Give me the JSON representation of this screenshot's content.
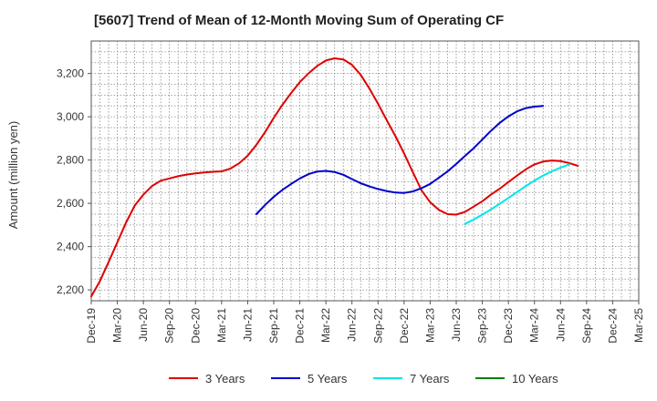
{
  "chart_data": {
    "type": "line",
    "title": "[5607]  Trend of Mean of 12-Month Moving Sum of Operating CF",
    "xlabel": "",
    "ylabel": "Amount (million yen)",
    "ylim": [
      2150,
      3350
    ],
    "yticks": [
      2200,
      2400,
      2600,
      2800,
      3000,
      3200
    ],
    "ytick_labels": [
      "2,200",
      "2,400",
      "2,600",
      "2,800",
      "3,000",
      "3,200"
    ],
    "x_categories": [
      "Dec-19",
      "Mar-20",
      "Jun-20",
      "Sep-20",
      "Dec-20",
      "Mar-21",
      "Jun-21",
      "Sep-21",
      "Dec-21",
      "Mar-22",
      "Jun-22",
      "Sep-22",
      "Dec-22",
      "Mar-23",
      "Jun-23",
      "Sep-23",
      "Dec-23",
      "Mar-24",
      "Jun-24",
      "Sep-24",
      "Dec-24",
      "Mar-25"
    ],
    "grid": true,
    "legend_position": "bottom",
    "series": [
      {
        "name": "3 Years",
        "color": "#e00000",
        "points": [
          [
            0,
            2170
          ],
          [
            0.33,
            2240
          ],
          [
            0.67,
            2330
          ],
          [
            1,
            2420
          ],
          [
            1.33,
            2510
          ],
          [
            1.67,
            2590
          ],
          [
            2,
            2640
          ],
          [
            2.33,
            2680
          ],
          [
            2.67,
            2705
          ],
          [
            3,
            2715
          ],
          [
            3.33,
            2725
          ],
          [
            3.67,
            2733
          ],
          [
            4,
            2738
          ],
          [
            4.33,
            2743
          ],
          [
            4.67,
            2746
          ],
          [
            5,
            2748
          ],
          [
            5.33,
            2760
          ],
          [
            5.67,
            2785
          ],
          [
            6,
            2820
          ],
          [
            6.33,
            2870
          ],
          [
            6.67,
            2930
          ],
          [
            7,
            2995
          ],
          [
            7.33,
            3055
          ],
          [
            7.67,
            3110
          ],
          [
            8,
            3160
          ],
          [
            8.33,
            3200
          ],
          [
            8.67,
            3235
          ],
          [
            9,
            3260
          ],
          [
            9.33,
            3270
          ],
          [
            9.67,
            3265
          ],
          [
            10,
            3240
          ],
          [
            10.33,
            3195
          ],
          [
            10.67,
            3130
          ],
          [
            11,
            3060
          ],
          [
            11.33,
            2985
          ],
          [
            11.67,
            2910
          ],
          [
            12,
            2830
          ],
          [
            12.33,
            2745
          ],
          [
            12.67,
            2660
          ],
          [
            13,
            2605
          ],
          [
            13.33,
            2570
          ],
          [
            13.67,
            2550
          ],
          [
            14,
            2548
          ],
          [
            14.33,
            2560
          ],
          [
            14.67,
            2585
          ],
          [
            15,
            2610
          ],
          [
            15.33,
            2640
          ],
          [
            15.67,
            2668
          ],
          [
            16,
            2698
          ],
          [
            16.33,
            2728
          ],
          [
            16.67,
            2757
          ],
          [
            17,
            2780
          ],
          [
            17.33,
            2793
          ],
          [
            17.67,
            2798
          ],
          [
            18,
            2795
          ],
          [
            18.33,
            2786
          ],
          [
            18.67,
            2773
          ]
        ]
      },
      {
        "name": "5 Years",
        "color": "#0000cc",
        "points": [
          [
            6.33,
            2550
          ],
          [
            6.67,
            2593
          ],
          [
            7,
            2630
          ],
          [
            7.33,
            2662
          ],
          [
            7.67,
            2690
          ],
          [
            8,
            2715
          ],
          [
            8.33,
            2735
          ],
          [
            8.67,
            2747
          ],
          [
            9,
            2750
          ],
          [
            9.33,
            2745
          ],
          [
            9.67,
            2732
          ],
          [
            10,
            2712
          ],
          [
            10.33,
            2693
          ],
          [
            10.67,
            2678
          ],
          [
            11,
            2666
          ],
          [
            11.33,
            2657
          ],
          [
            11.67,
            2650
          ],
          [
            12,
            2648
          ],
          [
            12.33,
            2655
          ],
          [
            12.67,
            2670
          ],
          [
            13,
            2690
          ],
          [
            13.33,
            2718
          ],
          [
            13.67,
            2748
          ],
          [
            14,
            2782
          ],
          [
            14.33,
            2818
          ],
          [
            14.67,
            2855
          ],
          [
            15,
            2895
          ],
          [
            15.33,
            2935
          ],
          [
            15.67,
            2972
          ],
          [
            16,
            3002
          ],
          [
            16.33,
            3025
          ],
          [
            16.67,
            3040
          ],
          [
            17,
            3047
          ],
          [
            17.33,
            3050
          ]
        ]
      },
      {
        "name": "7 Years",
        "color": "#00e5e5",
        "points": [
          [
            14.33,
            2505
          ],
          [
            14.67,
            2525
          ],
          [
            15,
            2548
          ],
          [
            15.33,
            2572
          ],
          [
            15.67,
            2598
          ],
          [
            16,
            2625
          ],
          [
            16.33,
            2652
          ],
          [
            16.67,
            2680
          ],
          [
            17,
            2705
          ],
          [
            17.33,
            2728
          ],
          [
            17.67,
            2748
          ],
          [
            18,
            2765
          ],
          [
            18.33,
            2780
          ]
        ]
      },
      {
        "name": "10 Years",
        "color": "#008000",
        "points": []
      }
    ]
  }
}
